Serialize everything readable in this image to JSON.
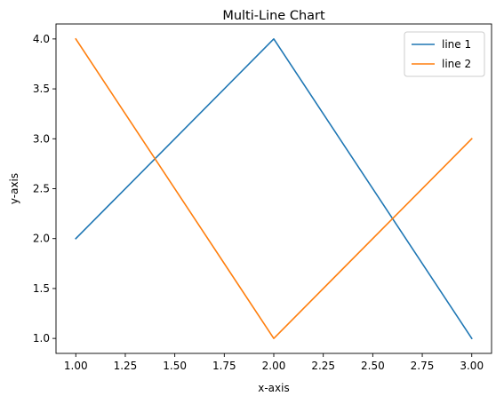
{
  "chart_data": {
    "type": "line",
    "title": "Multi-Line Chart",
    "xlabel": "x-axis",
    "ylabel": "y-axis",
    "x": [
      1,
      2,
      3
    ],
    "series": [
      {
        "name": "line 1",
        "values": [
          2,
          4,
          1
        ],
        "color": "#1f77b4"
      },
      {
        "name": "line 2",
        "values": [
          4,
          1,
          3
        ],
        "color": "#ff7f0e"
      }
    ],
    "xlim": [
      0.9,
      3.1
    ],
    "ylim": [
      0.85,
      4.15
    ],
    "xticks": [
      1.0,
      1.25,
      1.5,
      1.75,
      2.0,
      2.25,
      2.5,
      2.75,
      3.0
    ],
    "xtick_labels": [
      "1.00",
      "1.25",
      "1.50",
      "1.75",
      "2.00",
      "2.25",
      "2.50",
      "2.75",
      "3.00"
    ],
    "yticks": [
      1.0,
      1.5,
      2.0,
      2.5,
      3.0,
      3.5,
      4.0
    ],
    "ytick_labels": [
      "1.0",
      "1.5",
      "2.0",
      "2.5",
      "3.0",
      "3.5",
      "4.0"
    ],
    "grid": false,
    "legend_position": "top-right"
  }
}
